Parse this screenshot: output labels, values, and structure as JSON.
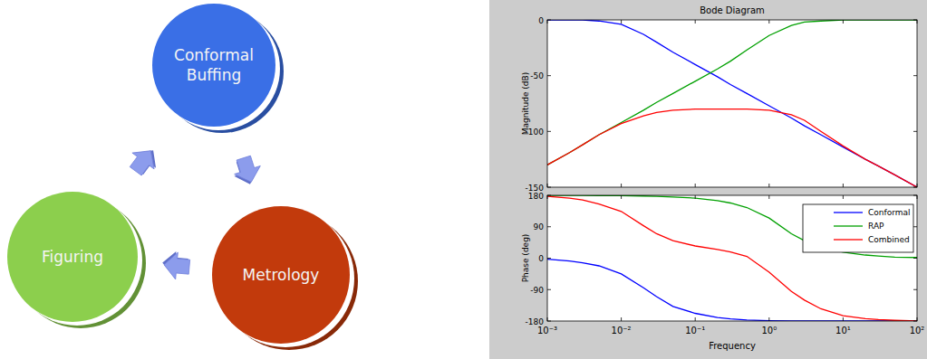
{
  "diagram": {
    "nodes": [
      {
        "label_lines": [
          "Conformal",
          "Buffing"
        ],
        "color": "#3a6fe6"
      },
      {
        "label_lines": [
          "Metrology"
        ],
        "color": "#c23a0c"
      },
      {
        "label_lines": [
          "Figuring"
        ],
        "color": "#8ccf4d"
      }
    ],
    "edges": [
      {
        "from": 0,
        "to": 1
      },
      {
        "from": 1,
        "to": 2
      },
      {
        "from": 2,
        "to": 0
      }
    ]
  },
  "chart_data": [
    {
      "type": "line",
      "title": "Bode Diagram",
      "y_label": "Magnitude (dB)",
      "log": "x",
      "x": [
        0.001,
        0.002,
        0.003,
        0.005,
        0.01,
        0.02,
        0.03,
        0.05,
        0.1,
        0.2,
        0.3,
        0.5,
        1,
        2,
        3,
        5,
        10,
        20,
        30,
        50,
        100
      ],
      "xlim": [
        0.001,
        100
      ],
      "xticks": [
        0.001,
        0.01,
        0.1,
        1,
        10,
        100
      ],
      "ylim": [
        -150,
        0
      ],
      "yticks": [
        -150,
        -100,
        -50,
        0
      ],
      "tick_labels": "y",
      "grid": false,
      "series": [
        {
          "color": "#0000ff",
          "values": [
            0,
            0,
            0,
            -1,
            -4,
            -13,
            -20,
            -29,
            -40,
            -51,
            -58,
            -66,
            -77,
            -88,
            -95,
            -103,
            -114,
            -125,
            -131,
            -139,
            -150
          ]
        },
        {
          "color": "#00a000",
          "values": [
            -130,
            -119,
            -112,
            -103,
            -92,
            -81,
            -74,
            -66,
            -55,
            -44,
            -37,
            -27,
            -14,
            -5,
            -2,
            -1,
            0,
            0,
            0,
            0,
            0
          ]
        },
        {
          "color": "#ff0000",
          "values": [
            -130,
            -119,
            -112,
            -103,
            -93,
            -86,
            -83,
            -81,
            -80,
            -80,
            -80,
            -80,
            -81,
            -85,
            -90,
            -100,
            -113,
            -125,
            -131,
            -139,
            -150
          ]
        }
      ]
    },
    {
      "type": "line",
      "x_label": "Frequency",
      "y_label": "Phase (deg)",
      "log": "x",
      "x": [
        0.001,
        0.002,
        0.003,
        0.005,
        0.01,
        0.02,
        0.03,
        0.05,
        0.1,
        0.2,
        0.3,
        0.5,
        1,
        2,
        3,
        5,
        10,
        20,
        30,
        50,
        100
      ],
      "xlim": [
        0.001,
        100
      ],
      "xticks": [
        {
          "value": 0.001,
          "label": "10⁻³"
        },
        {
          "value": 0.01,
          "label": "10⁻²"
        },
        {
          "value": 0.1,
          "label": "10⁻¹"
        },
        {
          "value": 1,
          "label": "10⁰"
        },
        {
          "value": 10,
          "label": "10¹"
        },
        {
          "value": 100,
          "label": "10²"
        }
      ],
      "ylim": [
        -180,
        180
      ],
      "yticks": [
        -180,
        -90,
        0,
        90,
        180
      ],
      "grid": false,
      "legend": "northeast",
      "series": [
        {
          "name": "Conformal",
          "color": "#0000ff",
          "values": [
            -3,
            -8,
            -13,
            -22,
            -45,
            -85,
            -110,
            -138,
            -158,
            -170,
            -174,
            -177,
            -179,
            -180,
            -180,
            -180,
            -180,
            -180,
            -180,
            -180,
            -180
          ]
        },
        {
          "name": "RAP",
          "color": "#00a000",
          "values": [
            180,
            180,
            180,
            179,
            179,
            178,
            177,
            175,
            172,
            165,
            158,
            145,
            115,
            70,
            50,
            32,
            17,
            9,
            6,
            3,
            2
          ]
        },
        {
          "name": "Combined",
          "color": "#ff0000",
          "values": [
            177,
            172,
            167,
            155,
            134,
            93,
            70,
            50,
            35,
            25,
            18,
            5,
            -40,
            -95,
            -120,
            -145,
            -165,
            -173,
            -176,
            -178,
            -180
          ]
        }
      ]
    }
  ]
}
